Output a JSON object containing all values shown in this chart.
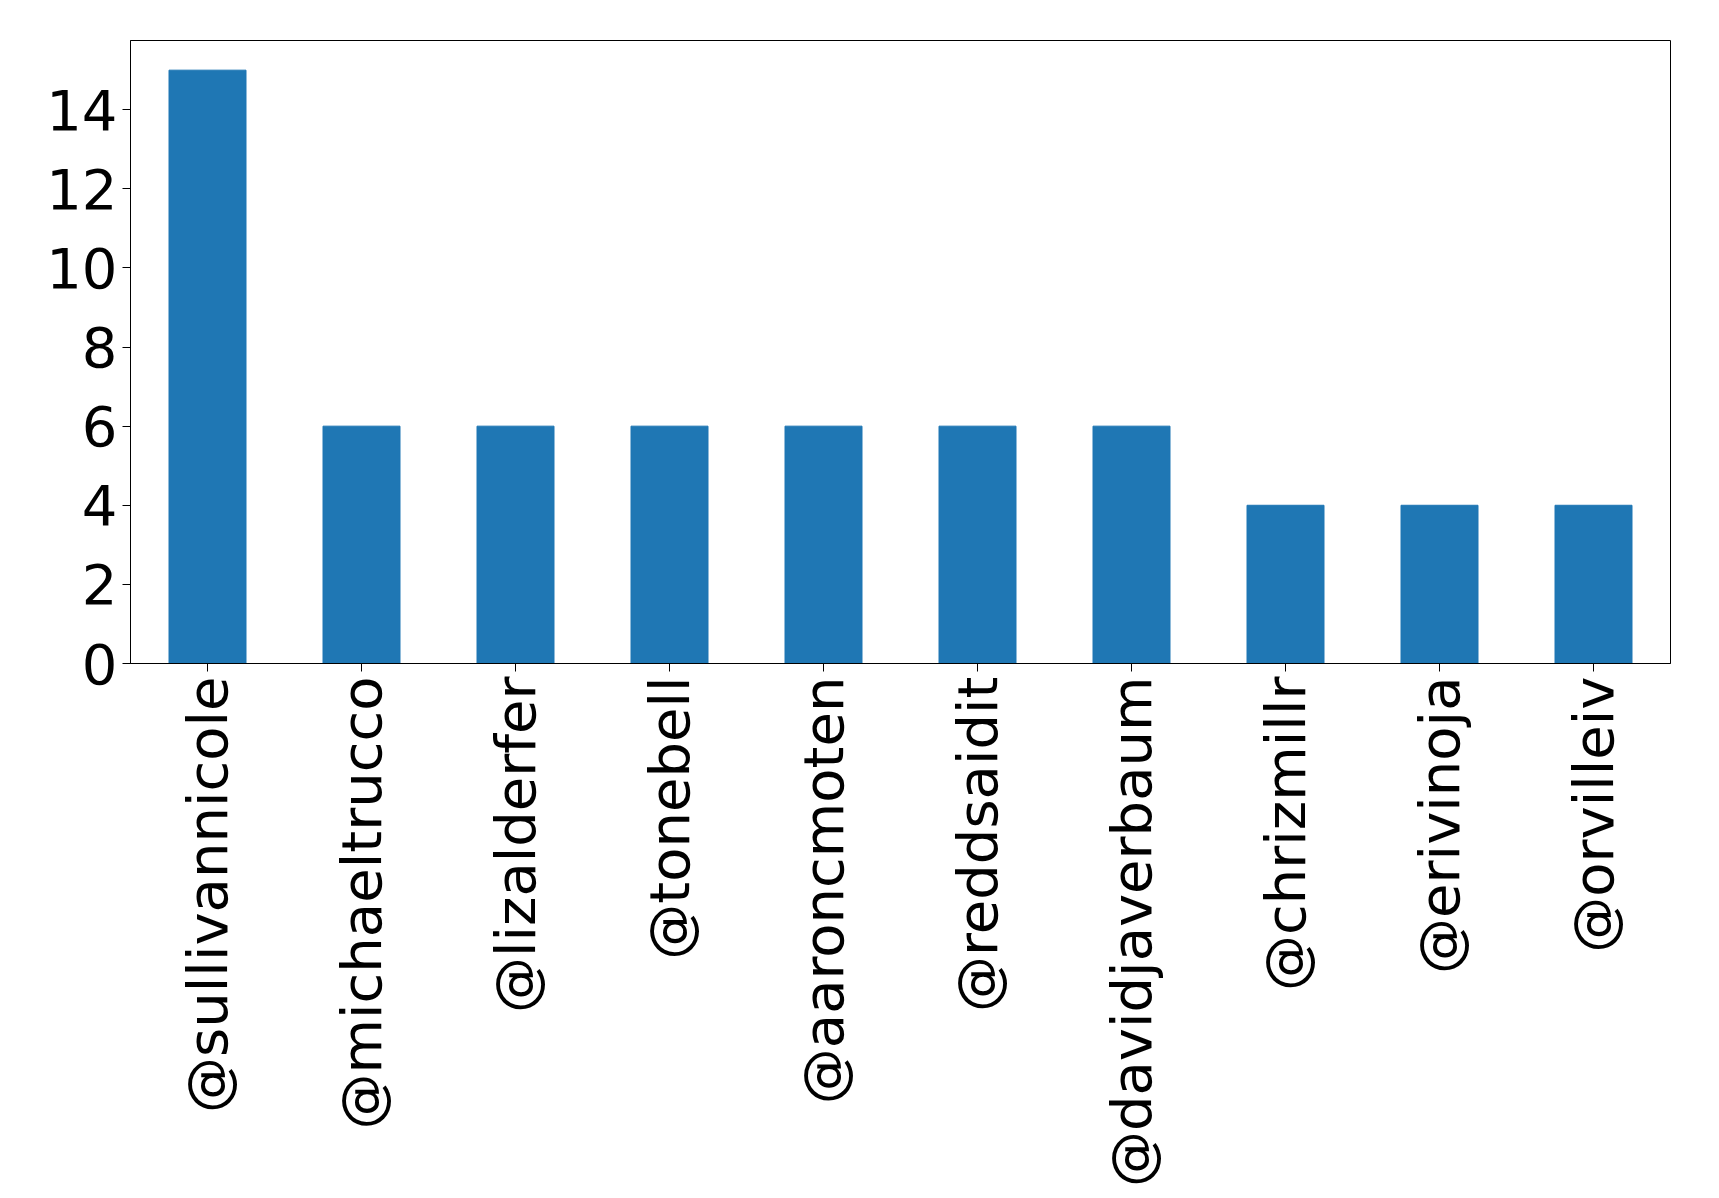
{
  "chart_data": {
    "type": "bar",
    "categories": [
      "@sullivannicole",
      "@michaeltrucco",
      "@lizalderfer",
      "@tonebell",
      "@aaroncmoten",
      "@reddsaidit",
      "@davidjaverbaum",
      "@chrizmillr",
      "@erivinoja",
      "@orvilleiv"
    ],
    "values": [
      15,
      6,
      6,
      6,
      6,
      6,
      6,
      4,
      4,
      4
    ],
    "color": "#1f77b4",
    "ylim": [
      0,
      15.75
    ],
    "yticks": [
      0,
      2,
      4,
      6,
      8,
      10,
      12,
      14
    ],
    "grid": false
  }
}
